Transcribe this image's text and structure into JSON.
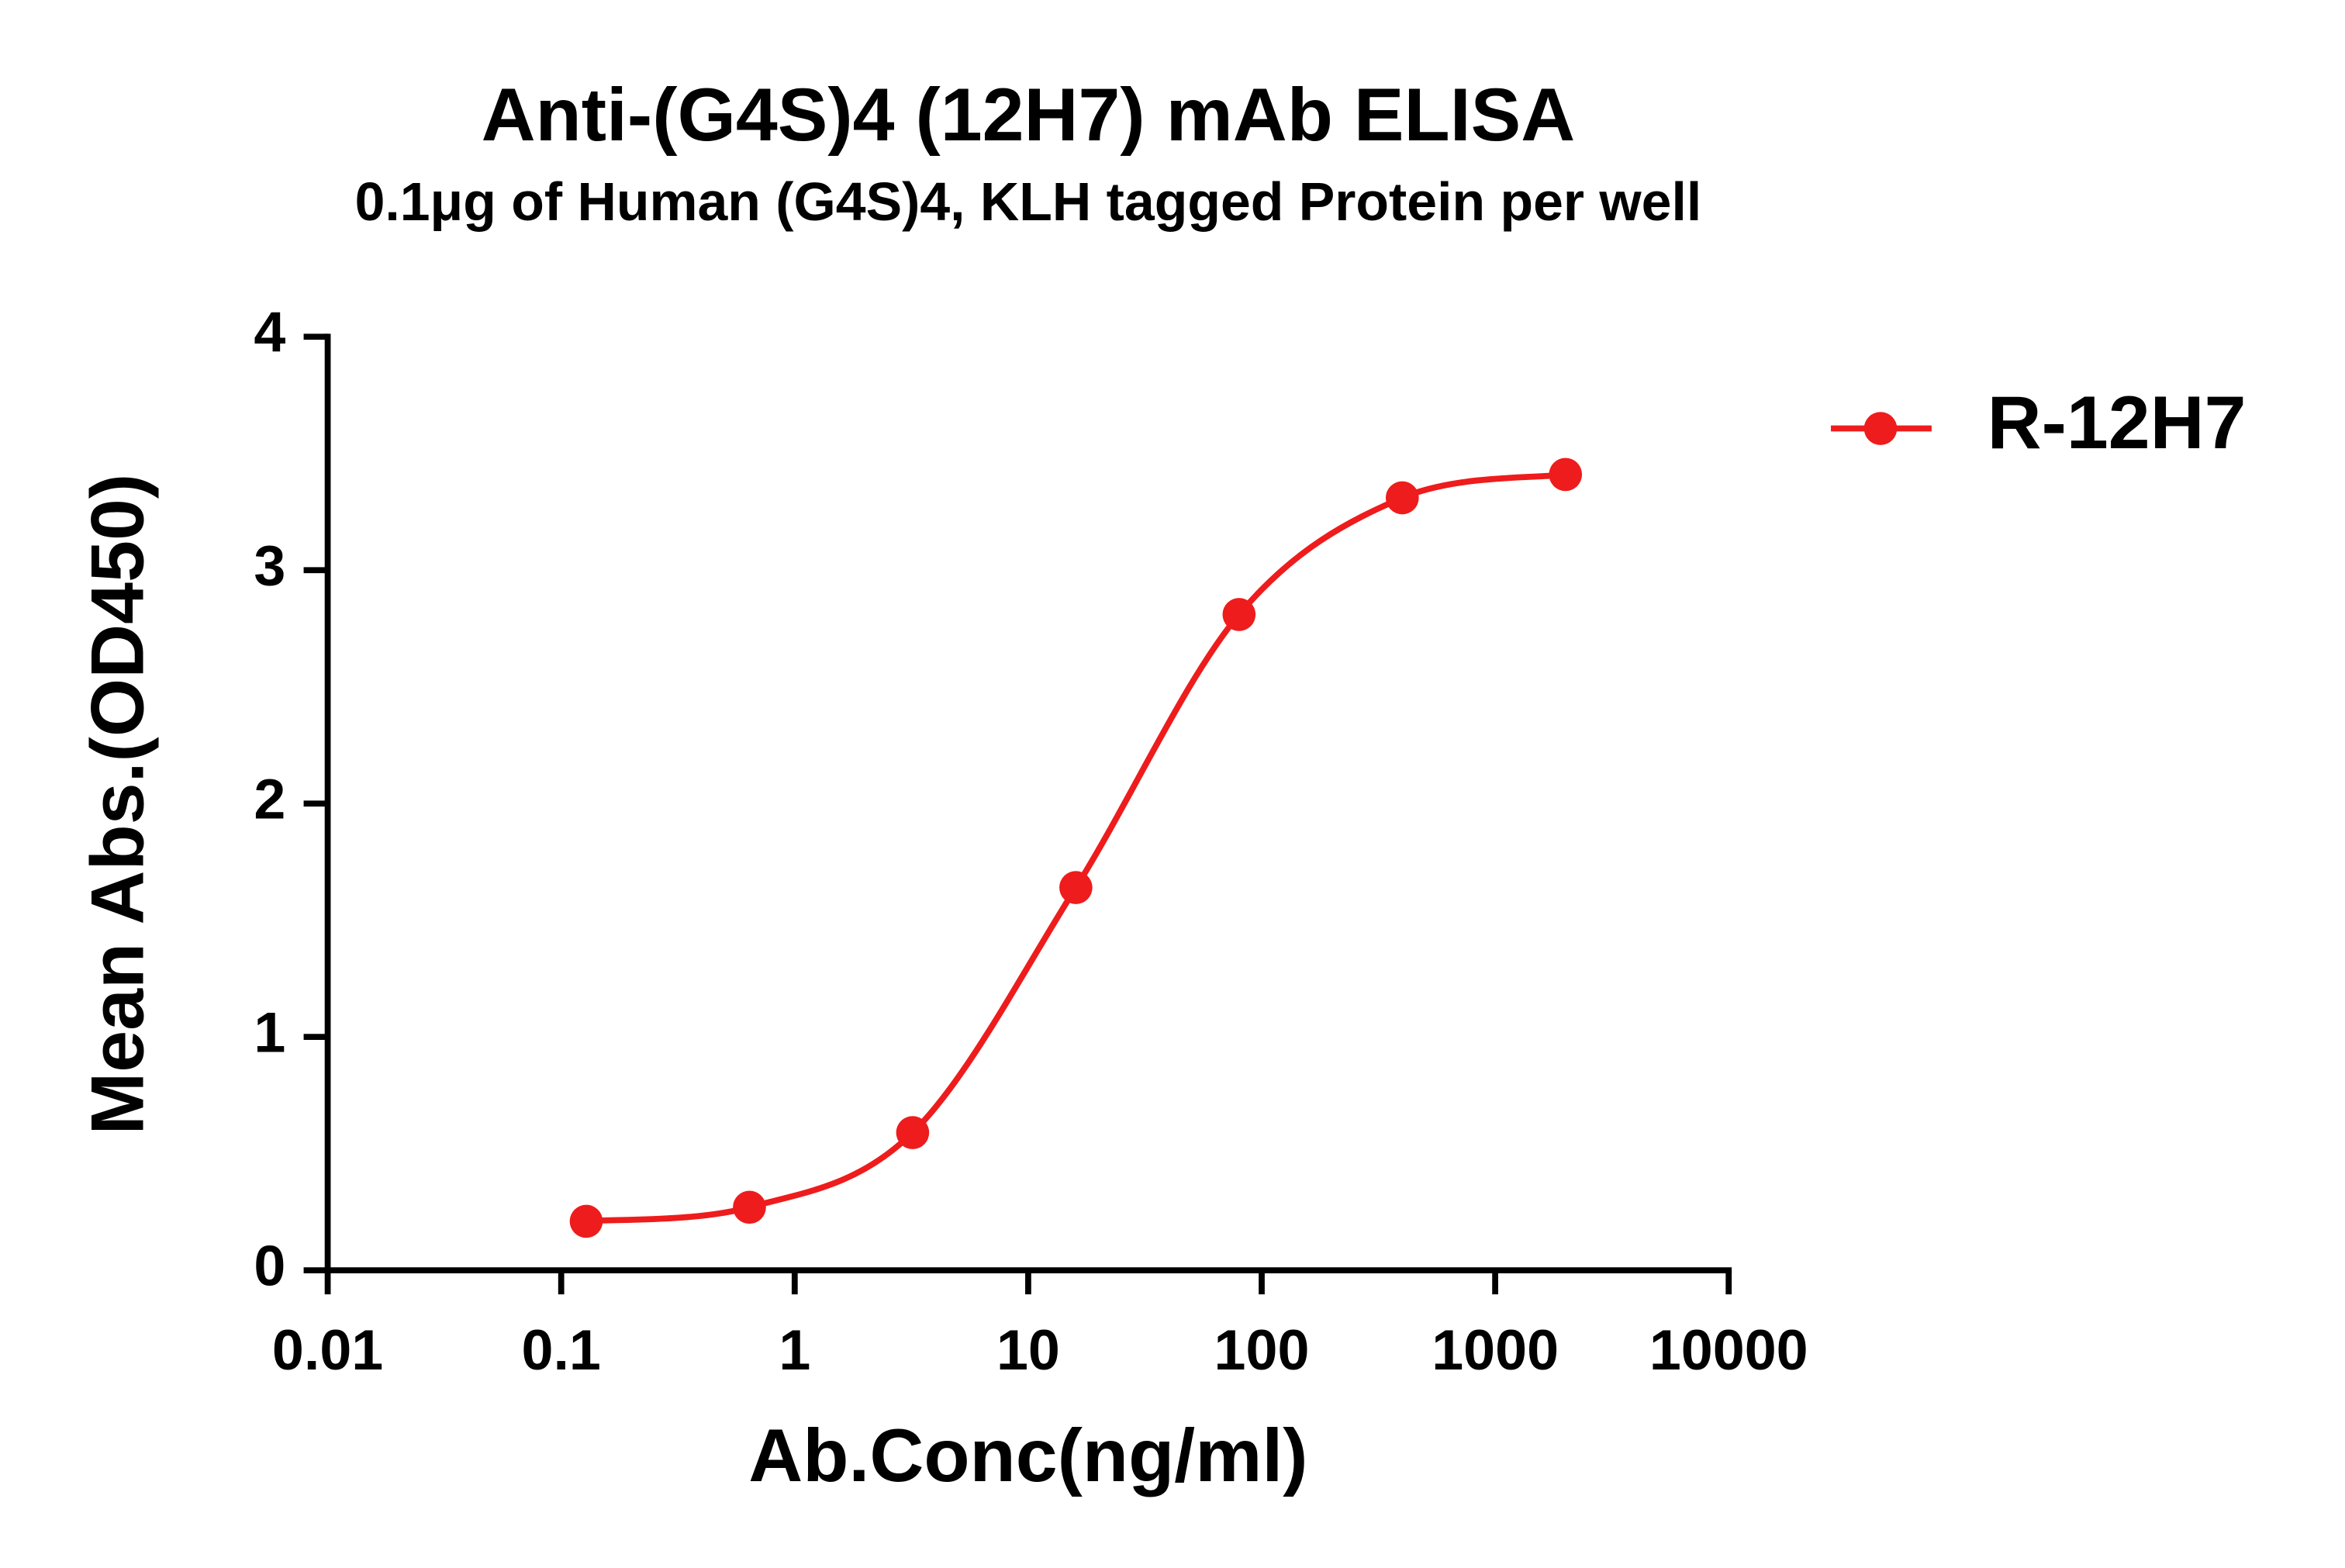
{
  "chart_data": {
    "type": "line",
    "title": "Anti-(G4S)4 (12H7) mAb ELISA",
    "subtitle": "0.1μg of Human (G4S)4, KLH tagged Protein per well",
    "x_label": "Ab.Conc(ng/ml)",
    "y_label": "Mean Abs.(OD450)",
    "x_scale": "log",
    "x": [
      0.128,
      0.64,
      3.2,
      16,
      80,
      400,
      2000
    ],
    "series": [
      {
        "name": "R-12H7",
        "color": "#ee1c1c",
        "values": [
          0.21,
          0.27,
          0.59,
          1.64,
          2.81,
          3.31,
          3.41
        ]
      }
    ],
    "xlim": [
      0.01,
      10000
    ],
    "xticks": [
      0.01,
      0.1,
      1,
      10,
      100,
      1000,
      10000
    ],
    "ylim": [
      0,
      4
    ],
    "yticks": [
      0,
      1,
      2,
      3,
      4
    ],
    "legend": "right"
  }
}
